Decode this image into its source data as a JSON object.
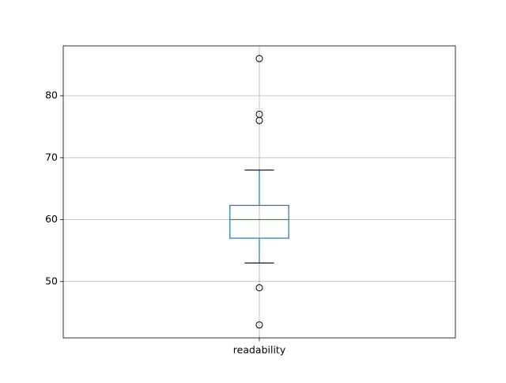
{
  "chart_data": {
    "type": "box",
    "categories": [
      "readability"
    ],
    "boxes": [
      {
        "min": 53,
        "q1": 57,
        "median": 60,
        "q3": 62.3,
        "max": 68,
        "outliers": [
          86,
          77,
          76,
          49,
          43
        ]
      }
    ],
    "box_color": "#1f77b4",
    "median_color": "#2ca02c",
    "cap_color": "#000000",
    "ylim": [
      40.9,
      88.05
    ],
    "yticks": [
      50,
      60,
      70,
      80
    ],
    "grid": true
  }
}
